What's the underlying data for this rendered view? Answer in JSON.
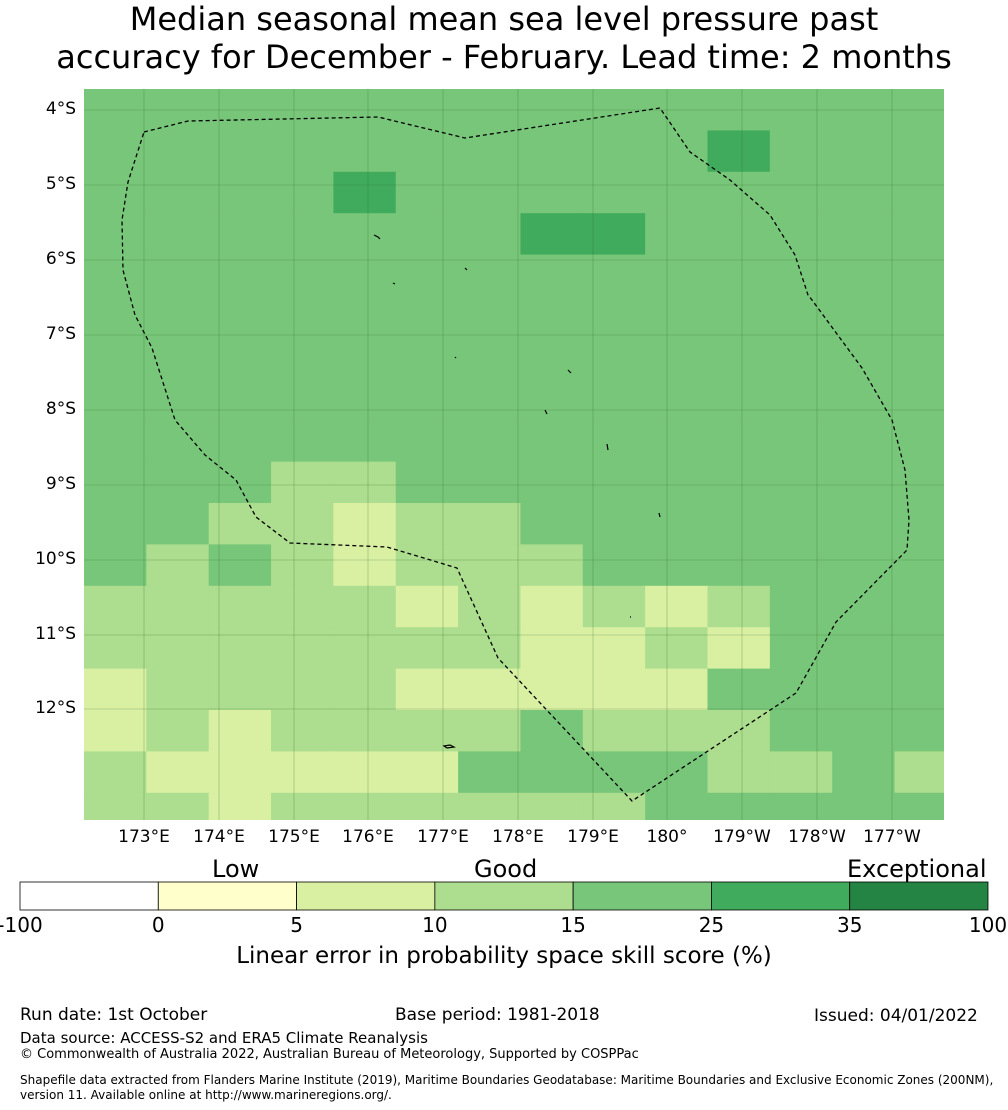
{
  "title": {
    "line1": "Median seasonal mean sea level pressure past",
    "line2": "accuracy for December - February. Lead time: 2 months"
  },
  "map": {
    "lat_labels": [
      "4°S",
      "5°S",
      "6°S",
      "7°S",
      "8°S",
      "9°S",
      "10°S",
      "11°S",
      "12°S"
    ],
    "lon_labels": [
      "173°E",
      "174°E",
      "175°E",
      "176°E",
      "177°E",
      "178°E",
      "179°E",
      "180°",
      "179°W",
      "178°W",
      "177°W"
    ],
    "cell_colors": {
      "c0": "#ffffcc",
      "c5": "#d9f0a3",
      "c10": "#addd8e",
      "c15": "#78c679",
      "c25": "#41ab5d",
      "c35": "#238443"
    },
    "grid_rows": [
      "15 15 15 15 15 15 15 15 15 15 15 15 15 15",
      "15 15 15 15 15 15 15 15 15 15 25 15 15 15",
      "15 15 15 15 25 15 15 15 15 15 15 15 15 15",
      "15 15 15 15 15 15 15 25 25 15 15 15 15 15",
      "15 15 15 15 15 15 15 15 15 15 15 15 15 15",
      "15 15 15 15 15 15 15 15 15 15 15 15 15 15",
      "15 15 15 15 15 15 15 15 15 15 15 15 15 15",
      "15 15 15 15 15 15 15 15 15 15 15 15 15 15",
      "15 15 15 15 15 15 15 15 15 15 15 15 15 15",
      "15 15 15 10 10 15 15 15 15 15 15 15 15 15",
      "15 15 10 10 5 10 10 15 15 15 15 15 15 15",
      "15 10 15 10 5 10 10 10 15 15 15 15 15 15",
      "10 10 10 10 10 5 10 5 10 5 10 15 15 15",
      "10 10 10 10 10 10 10 5 5 10 5 15 15 15",
      "5 10 10 10 10 5 5 5 5 5 15 15 15 15",
      "5 10 5 10 10 10 10 15 10 10 10 15 15 15",
      "10 5 5 5 5 5 15 15 15 15 10 10 15 10",
      "10 10 5 10 10 10 10 10 10 15 15 15 15 15"
    ]
  },
  "chart_data": {
    "type": "heatmap",
    "title": "Median seasonal mean sea level pressure past accuracy for December - February. Lead time: 2 months",
    "variable": "Linear error in probability space skill score (%)",
    "x_axis": "longitude",
    "y_axis": "latitude",
    "xlim": [
      172.2,
      183.65
    ],
    "ylim": [
      -13.55,
      -3.75
    ],
    "bins": [
      -100,
      0,
      5,
      10,
      15,
      25,
      35,
      100
    ],
    "categories": [
      "Low",
      "Good",
      "Exceptional"
    ]
  },
  "colorbar": {
    "categories": [
      "Low",
      "Good",
      "Exceptional"
    ],
    "tick_labels": [
      "-100",
      "0",
      "5",
      "10",
      "15",
      "25",
      "35",
      "100"
    ],
    "colors": [
      "#ffffff",
      "#ffffcc",
      "#d9f0a3",
      "#addd8e",
      "#78c679",
      "#41ab5d",
      "#238443"
    ],
    "label": "Linear error in probability space skill score (%)"
  },
  "footer": {
    "run_date": "Run date: 1st October",
    "base_period": "Base period: 1981-2018",
    "issued": "Issued: 04/01/2022",
    "data_source": "Data source: ACCESS-S2 and ERA5 Climate Reanalysis",
    "copyright": "© Commonwealth of Australia 2022, Australian Bureau of Meteorology, Supported by COSPPac",
    "shapefile_line1": "Shapefile data extracted from Flanders Marine Institute (2019), Maritime Boundaries Geodatabase: Maritime Boundaries and Exclusive Economic Zones (200NM),",
    "shapefile_line2": "version 11. Available online at http://www.marineregions.org/."
  }
}
